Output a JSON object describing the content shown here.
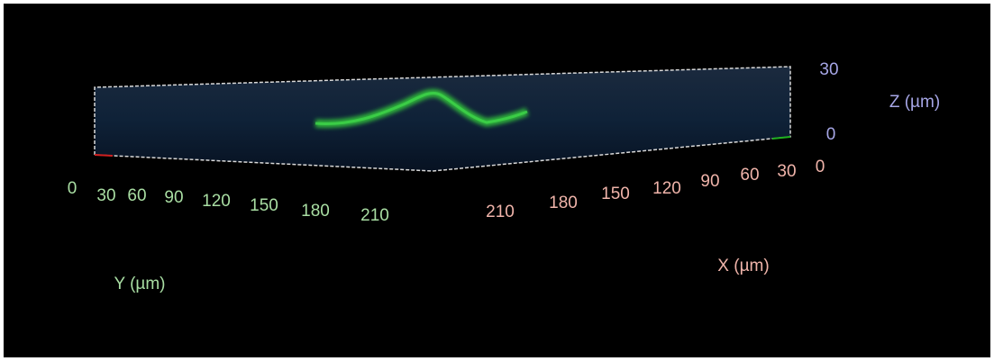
{
  "axes": {
    "y": {
      "title": "Y (µm)",
      "ticks": [
        0,
        30,
        60,
        90,
        120,
        150,
        180,
        210
      ]
    },
    "x": {
      "title": "X (µm)",
      "ticks": [
        210,
        180,
        150,
        120,
        90,
        60,
        30,
        0
      ]
    },
    "z": {
      "title": "Z (µm)",
      "ticks": [
        30,
        0
      ]
    }
  }
}
